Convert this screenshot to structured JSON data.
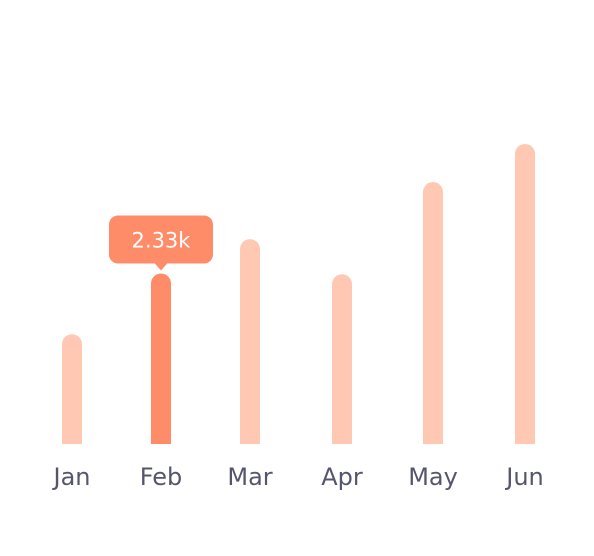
{
  "chart_data": {
    "type": "bar",
    "categories": [
      "Jan",
      "Feb",
      "Mar",
      "Apr",
      "May",
      "Jun"
    ],
    "values": [
      1500,
      2330,
      2800,
      2320,
      3580,
      4100
    ],
    "highlighted_index": 1,
    "tooltip": {
      "category": "Feb",
      "label": "2.33k"
    },
    "xlabel": "",
    "ylabel": "",
    "grid": false,
    "legend": "none",
    "colors": {
      "bar": "#ffc8b3",
      "bar_highlight": "#ff8c69",
      "tooltip_bg": "#ff8c69",
      "label_text": "#55566d",
      "tooltip_text": "#ffffff"
    }
  }
}
